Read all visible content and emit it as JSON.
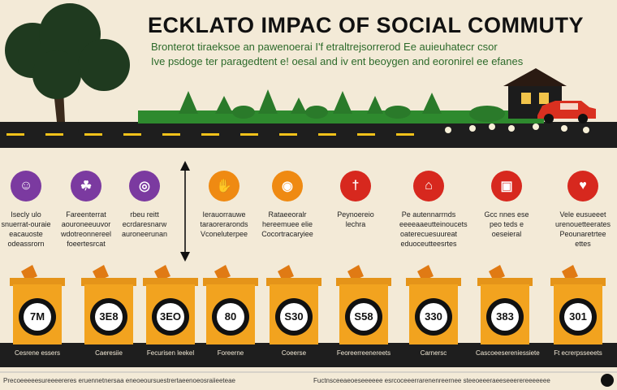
{
  "header": {
    "title": "ECKLATO IMPAC OF SOCIAL COMMUTY",
    "subtitle_line1": "Bronterot tiraeksoe an pawenoerai I'f etraltrejsorrerod Ee auieuhatecr csor",
    "subtitle_line2": "Ive psdoge ter paragedtent e! oesal and iv ent beoygen and eoronirel ee efanes"
  },
  "colors": {
    "purple": "#7b3aa0",
    "orange": "#ef8a12",
    "red": "#d7281e",
    "bin": "#f2a31f",
    "road": "#1e1e1e",
    "tree": "#1f3a1f",
    "grass": "#2e8a2e"
  },
  "categories": [
    {
      "color": "purple",
      "icon": "people-icon",
      "lines": [
        "Isecly ulo",
        "snuerrat-ouraie",
        "eacauoste",
        "odeassrorn"
      ]
    },
    {
      "color": "purple",
      "icon": "leaf-icon",
      "lines": [
        "Fareenterrat",
        "aouroneeuuvor",
        "wdotreonnereel",
        "foeertesrcat"
      ]
    },
    {
      "color": "purple",
      "icon": "globe-icon",
      "lines": [
        "rbeu reitt",
        "ecrdaresnarw",
        "auroneerunan"
      ]
    },
    {
      "color": "orange",
      "icon": "hand-icon",
      "lines": [
        "Ierauorrauwe",
        "taraoreraronds",
        "Vconeluterpee"
      ]
    },
    {
      "color": "orange",
      "icon": "coin-icon",
      "lines": [
        "Rataeeoralr",
        "hereemuee elie",
        "Cocortracaryiee"
      ]
    },
    {
      "color": "red",
      "icon": "person-icon",
      "lines": [
        "Peynoereio",
        "lechra"
      ]
    },
    {
      "color": "red",
      "icon": "house-icon",
      "lines": [
        "Pe autennarrnds",
        "eeeeaaeutteinoucets",
        "oaterecuesuureat",
        "eduoceutteesrtes"
      ]
    },
    {
      "color": "red",
      "icon": "box-icon",
      "lines": [
        "Gcc nnes ese",
        "peo teds e",
        "oeseieral"
      ]
    },
    {
      "color": "red",
      "icon": "heart-icon",
      "lines": [
        "Vele eusueeet",
        "urenouetteerates",
        "Peounaretrtee",
        "ettes"
      ]
    }
  ],
  "bins": [
    {
      "value": "7M",
      "label": "Cesrene essers"
    },
    {
      "value": "3E8",
      "label": "Caeresiie"
    },
    {
      "value": "3EO",
      "label": "Fecurisen leekel"
    },
    {
      "value": "80",
      "label": "Foreerne"
    },
    {
      "value": "S30",
      "label": "Coeerse"
    },
    {
      "value": "S58",
      "label": "Feoreerreenereets"
    },
    {
      "value": "330",
      "label": "Carnersc"
    },
    {
      "value": "383",
      "label": "Cascoeesereniessiete"
    },
    {
      "value": "301",
      "label": "Ft ecrerpsseeets"
    }
  ],
  "footer": {
    "left": "Precoeeeeesureeeereres eruennetnersaa eneoeoursuestrertaeenoeosraiieeteae",
    "right": "Fuctnsceeaeoeseeeeee esrcoceeerrarenenreernee  steeoeeeraeeseeerereeeeeee"
  }
}
